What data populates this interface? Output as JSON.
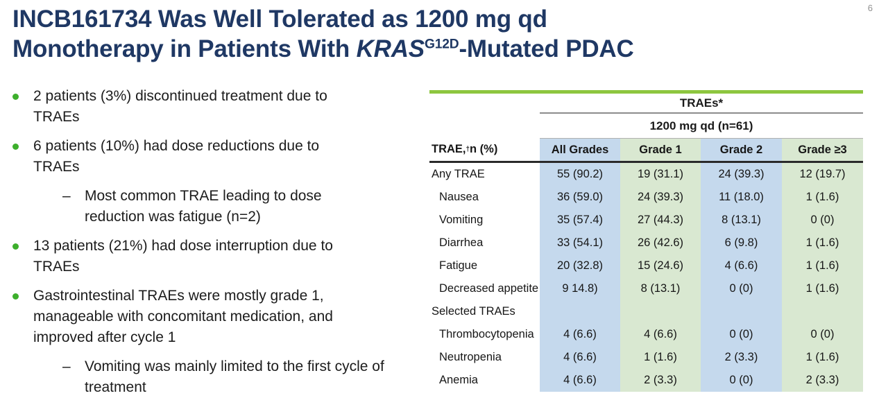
{
  "page": {
    "number": "6"
  },
  "title": {
    "line1": "INCB161734 Was Well Tolerated as 1200 mg qd",
    "line2_prefix": "Monotherapy in Patients With ",
    "line2_gene": "KRAS",
    "line2_sup": "G12D",
    "line2_suffix": "-Mutated PDAC"
  },
  "bullets": [
    {
      "level": 1,
      "text": "2 patients (3%) discontinued treatment due to\nTRAEs"
    },
    {
      "level": 1,
      "text": "6 patients (10%) had dose reductions due to\nTRAEs"
    },
    {
      "level": 2,
      "text": "Most common TRAE leading to dose\nreduction was fatigue (n=2)"
    },
    {
      "level": 1,
      "text": "13 patients (21%) had dose interruption due to\nTRAEs"
    },
    {
      "level": 1,
      "text": "Gastrointestinal TRAEs were mostly grade 1,\nmanageable with concomitant medication, and\nimproved after cycle 1"
    },
    {
      "level": 2,
      "text": "Vomiting was mainly limited to the first cycle of\ntreatment"
    }
  ],
  "table": {
    "group_header": "TRAEs*",
    "dose_header": "1200 mg qd (n=61)",
    "row_label_header": {
      "prefix": "TRAE,",
      "sup": "†",
      "suffix": " n (%)"
    },
    "columns": [
      "All Grades",
      "Grade 1",
      "Grade 2",
      "Grade ≥3"
    ],
    "rows": [
      {
        "label": "Any TRAE",
        "cells": [
          "55 (90.2)",
          "19 (31.1)",
          "24 (39.3)",
          "12 (19.7)"
        ]
      },
      {
        "label": "Nausea",
        "cells": [
          "36 (59.0)",
          "24 (39.3)",
          "11 (18.0)",
          "1 (1.6)"
        ]
      },
      {
        "label": "Vomiting",
        "cells": [
          "35 (57.4)",
          "27 (44.3)",
          "8 (13.1)",
          "0 (0)"
        ]
      },
      {
        "label": "Diarrhea",
        "cells": [
          "33 (54.1)",
          "26 (42.6)",
          "6 (9.8)",
          "1 (1.6)"
        ]
      },
      {
        "label": "Fatigue",
        "cells": [
          "20 (32.8)",
          "15 (24.6)",
          "4 (6.6)",
          "1 (1.6)"
        ]
      },
      {
        "label": "Decreased appetite",
        "cells": [
          "9 14.8)",
          "8 (13.1)",
          "0 (0)",
          "1 (1.6)"
        ]
      },
      {
        "label": "Selected TRAEs",
        "cells": [
          "",
          "",
          "",
          ""
        ]
      },
      {
        "label": "Thrombocytopenia",
        "cells": [
          "4 (6.6)",
          "4 (6.6)",
          "0 (0)",
          "0 (0)"
        ]
      },
      {
        "label": "Neutropenia",
        "cells": [
          "4 (6.6)",
          "1 (1.6)",
          "2 (3.3)",
          "1 (1.6)"
        ]
      },
      {
        "label": "Anemia",
        "cells": [
          "4 (6.6)",
          "2 (3.3)",
          "0 (0)",
          "2 (3.3)"
        ]
      }
    ],
    "colors": {
      "top_bar_green": "#8dc63f",
      "cell_blue": "#c5d9ed",
      "cell_green": "#d9e8d1",
      "title_navy": "#1f3864",
      "bullet_green": "#3daf2c"
    }
  }
}
